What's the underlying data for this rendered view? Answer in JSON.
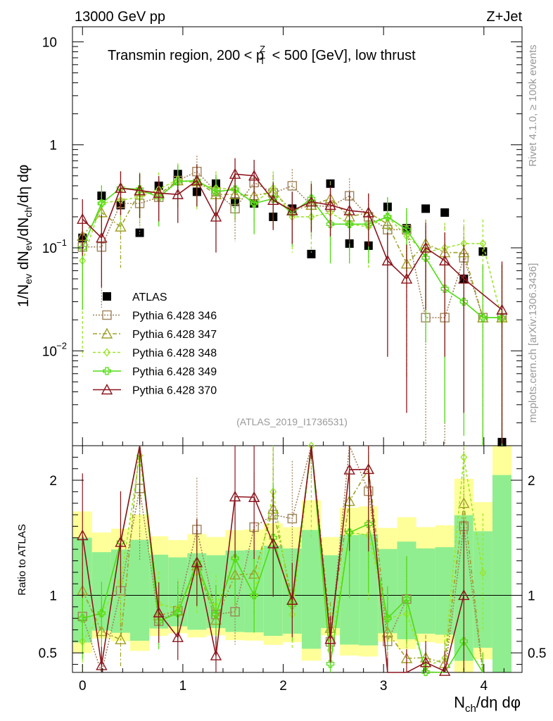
{
  "header": {
    "left": "13000 GeV pp",
    "right": "Z+Jet",
    "title": "Transmin region, 200 < p",
    "title_sup": "Z",
    "title_sub": "T",
    "title_end": " < 500 [GeV], low thrust",
    "watermark": "(ATLAS_2019_I1736531)",
    "side_top": "Rivet 4.1.0, ≥ 100k events",
    "side_bottom": "mcplots.cern.ch [arXiv:1306.3436]"
  },
  "chart_data": {
    "type": "scatter",
    "x": [
      0.0,
      0.19,
      0.38,
      0.57,
      0.76,
      0.95,
      1.14,
      1.33,
      1.52,
      1.71,
      1.9,
      2.09,
      2.28,
      2.47,
      2.66,
      2.85,
      3.04,
      3.23,
      3.42,
      3.61,
      3.8,
      3.99,
      4.18
    ],
    "xlabel": "N_ch/dη dφ",
    "xlim": [
      -0.1,
      4.38
    ],
    "xticks": [
      "0",
      "1",
      "2",
      "3",
      "4"
    ],
    "ylabel": "1/N_ev dN_ev/dN_ch/dη dφ",
    "ylim": [
      0.0012,
      14
    ],
    "yscale": "log",
    "yticks": [
      "10",
      "1",
      "10^-1",
      "10^-2"
    ],
    "ratio_ylabel": "Ratio to ATLAS",
    "ratio_ylim": [
      0.33,
      2.3
    ],
    "ratio_yticks": [
      "2",
      "1",
      "0.5"
    ],
    "legend_position": "center-left",
    "series": [
      {
        "name": "ATLAS",
        "color": "#000000",
        "marker": "square",
        "values": [
          0.125,
          0.32,
          0.26,
          0.14,
          0.4,
          0.52,
          0.35,
          0.42,
          0.28,
          0.27,
          0.2,
          0.24,
          0.087,
          0.42,
          0.11,
          0.105,
          0.25,
          0.155,
          0.24,
          0.22,
          0.05,
          0.092,
          0.0013
        ]
      },
      {
        "name": "Pythia 6.428 346",
        "color": "#a0825a",
        "marker": "open-square",
        "values": [
          0.102,
          0.102,
          0.27,
          0.27,
          0.31,
          0.45,
          0.55,
          0.35,
          0.24,
          0.43,
          0.34,
          0.4,
          0.26,
          0.25,
          0.32,
          0.2,
          0.15,
          0.15,
          0.021,
          0.021,
          0.08,
          0.021,
          0.021
        ]
      },
      {
        "name": "Pythia 6.428 347",
        "color": "#a0a028",
        "marker": "open-triangle",
        "values": [
          0.13,
          0.22,
          0.16,
          0.35,
          0.33,
          0.45,
          0.44,
          0.33,
          0.33,
          0.32,
          0.35,
          0.23,
          0.26,
          0.3,
          0.2,
          0.22,
          0.17,
          0.07,
          0.11,
          0.09,
          0.09,
          0.021,
          0.021
        ]
      },
      {
        "name": "Pythia 6.428 348",
        "color": "#9be628",
        "marker": "open-diamond",
        "values": [
          0.075,
          0.27,
          0.29,
          0.31,
          0.37,
          0.46,
          0.42,
          0.38,
          0.37,
          0.27,
          0.38,
          0.2,
          0.2,
          0.22,
          0.17,
          0.16,
          0.2,
          0.13,
          0.09,
          0.1,
          0.11,
          0.11,
          0.02
        ]
      },
      {
        "name": "Pythia 6.428 349",
        "color": "#50dc14",
        "marker": "open-cross",
        "values": [
          0.1,
          0.27,
          0.38,
          0.37,
          0.31,
          0.44,
          0.45,
          0.35,
          0.37,
          0.27,
          0.3,
          0.22,
          0.3,
          0.17,
          0.17,
          0.17,
          0.2,
          0.15,
          0.08,
          0.04,
          0.03,
          0.021,
          0.021
        ]
      },
      {
        "name": "Pythia 6.428 370",
        "color": "#8c141e",
        "marker": "open-triangle",
        "values": [
          0.19,
          0.125,
          0.38,
          0.36,
          0.34,
          0.33,
          0.45,
          0.2,
          0.52,
          0.5,
          0.29,
          0.23,
          0.28,
          0.26,
          0.23,
          0.22,
          0.075,
          0.05,
          0.1,
          0.075,
          0.05,
          null,
          0.025
        ]
      }
    ]
  }
}
